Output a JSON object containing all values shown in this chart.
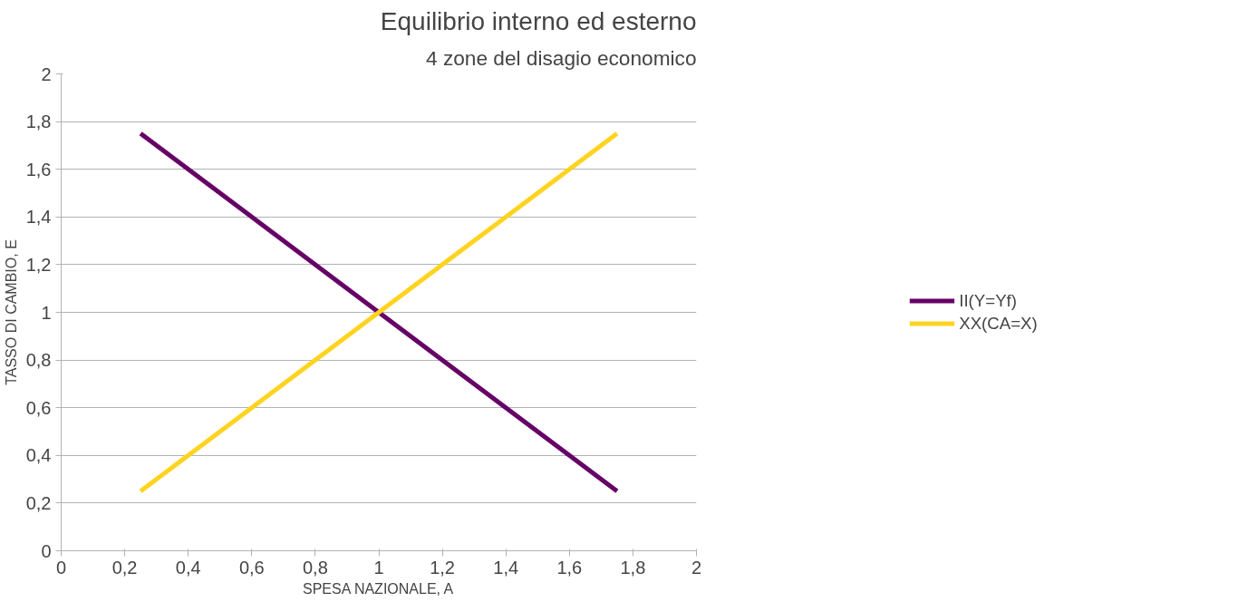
{
  "chart_data": {
    "type": "line",
    "title": "Equilibrio interno ed esterno",
    "subtitle": "4 zone del disagio economico",
    "xlabel": "SPESA NAZIONALE, A",
    "ylabel": "TASSO DI CAMBIO, E",
    "xlim": [
      0,
      2
    ],
    "ylim": [
      0,
      2
    ],
    "xticks": [
      0,
      {
        "value": 0.2,
        "label": "0,2"
      },
      {
        "value": 0.4,
        "label": "0,4"
      },
      {
        "value": 0.6,
        "label": "0,6"
      },
      {
        "value": 0.8,
        "label": "0,8"
      },
      1,
      {
        "value": 1.2,
        "label": "1,2"
      },
      {
        "value": 1.4,
        "label": "1,4"
      },
      {
        "value": 1.6,
        "label": "1,6"
      },
      {
        "value": 1.8,
        "label": "1,8"
      },
      2
    ],
    "yticks": [
      0,
      {
        "value": 0.2,
        "label": "0,2"
      },
      {
        "value": 0.4,
        "label": "0,4"
      },
      {
        "value": 0.6,
        "label": "0,6"
      },
      {
        "value": 0.8,
        "label": "0,8"
      },
      1,
      {
        "value": 1.2,
        "label": "1,2"
      },
      {
        "value": 1.4,
        "label": "1,4"
      },
      {
        "value": 1.6,
        "label": "1,6"
      },
      {
        "value": 1.8,
        "label": "1,8"
      },
      2
    ],
    "x": [
      0.25,
      1.75
    ],
    "series": [
      {
        "name": "II(Y=Yf)",
        "color": "#660066",
        "values": [
          1.75,
          0.25
        ]
      },
      {
        "name": "XX(CA=X)",
        "color": "#ffd320",
        "values": [
          0.25,
          1.75
        ]
      }
    ],
    "grid": "y",
    "legend": "right",
    "line_style": "solid"
  }
}
